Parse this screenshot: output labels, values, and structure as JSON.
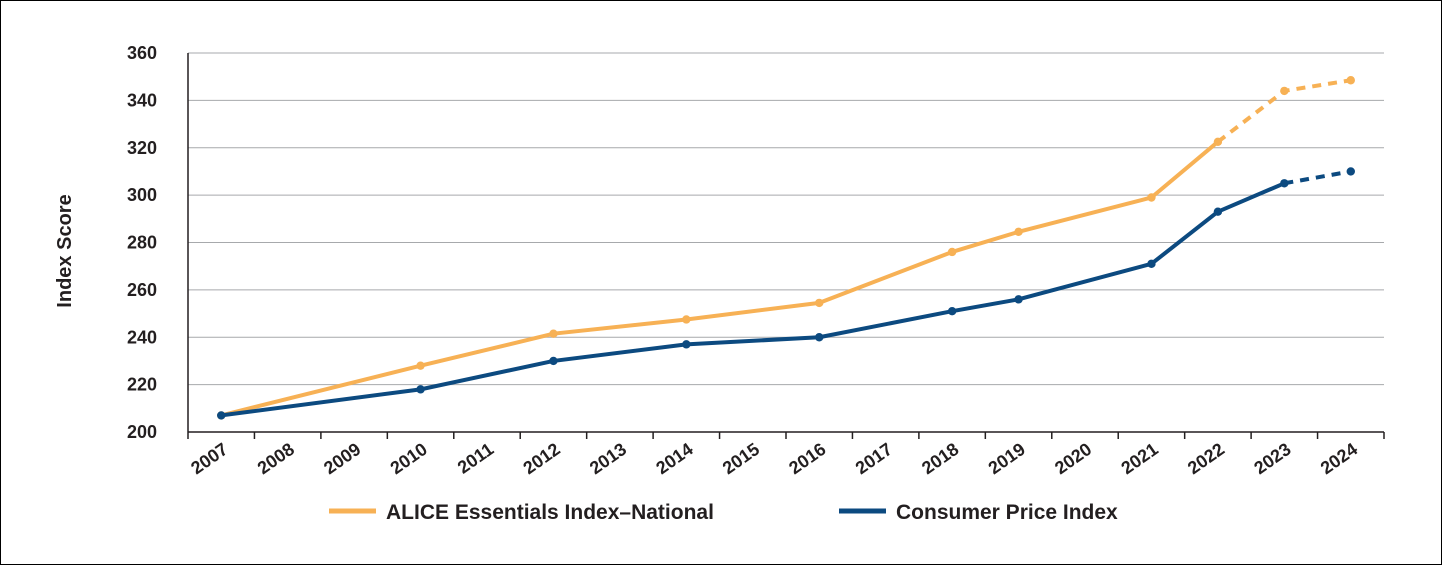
{
  "chart_data": {
    "type": "line",
    "ylabel": "Index Score",
    "xlabel": "",
    "ylim": [
      200,
      360
    ],
    "yticks": [
      200,
      220,
      240,
      260,
      280,
      300,
      320,
      340,
      360
    ],
    "xticks": [
      "2007",
      "2008",
      "2009",
      "2010",
      "2011",
      "2012",
      "2013",
      "2014",
      "2015",
      "2016",
      "2017",
      "2018",
      "2019",
      "2020",
      "2021",
      "2022",
      "2023",
      "2024"
    ],
    "grid": true,
    "legend_position": "bottom",
    "series": [
      {
        "name": "ALICE Essentials Index–National",
        "color": "#f7b155",
        "x": [
          2007,
          2010,
          2012,
          2014,
          2016,
          2018,
          2019,
          2021,
          2022,
          2023,
          2024
        ],
        "y": [
          207,
          228,
          241.5,
          247.5,
          254.5,
          276,
          284.5,
          299,
          322.5,
          344,
          348.5
        ],
        "projected_from": 2022
      },
      {
        "name": "Consumer Price Index",
        "color": "#0c4a80",
        "x": [
          2007,
          2010,
          2012,
          2014,
          2016,
          2018,
          2019,
          2021,
          2022,
          2023,
          2024
        ],
        "y": [
          207,
          218,
          230,
          237,
          240,
          251,
          256,
          271,
          293,
          305,
          310
        ],
        "projected_from": 2023
      }
    ]
  }
}
